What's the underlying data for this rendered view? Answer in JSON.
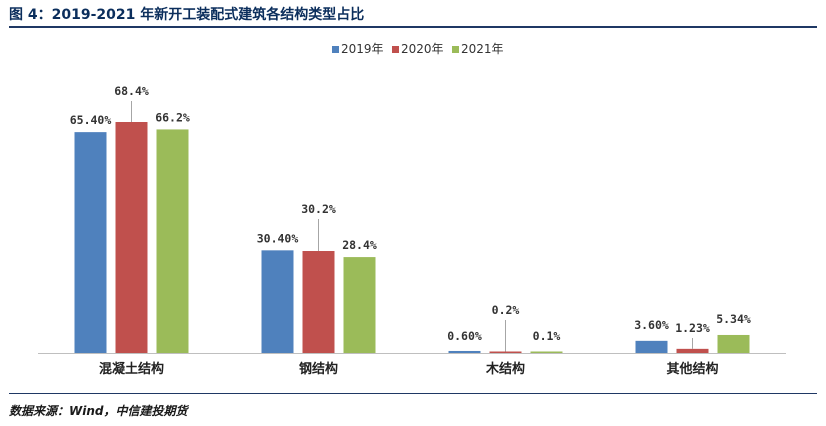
{
  "title": "图 4：2019-2021 年新开工装配式建筑各结构类型占比",
  "source": "数据来源：Wind，中信建投期货",
  "chart_data": {
    "type": "bar",
    "categories": [
      "混凝土结构",
      "钢结构",
      "木结构",
      "其他结构"
    ],
    "series": [
      {
        "name": "2019年",
        "color": "#4f81bd",
        "values": [
          65.4,
          30.4,
          0.6,
          3.6
        ],
        "labels": [
          "65.40%",
          "30.40%",
          "0.60%",
          "3.60%"
        ]
      },
      {
        "name": "2020年",
        "color": "#c0504d",
        "values": [
          68.4,
          30.2,
          0.2,
          1.23
        ],
        "labels": [
          "68.4%",
          "30.2%",
          "0.2%",
          "1.23%"
        ]
      },
      {
        "name": "2021年",
        "color": "#9bbb59",
        "values": [
          66.2,
          28.4,
          0.1,
          5.34
        ],
        "labels": [
          "66.2%",
          "28.4%",
          "0.1%",
          "5.34%"
        ]
      }
    ],
    "legend_position": "top-center",
    "grid": false,
    "ylim": [
      0,
      80
    ]
  }
}
